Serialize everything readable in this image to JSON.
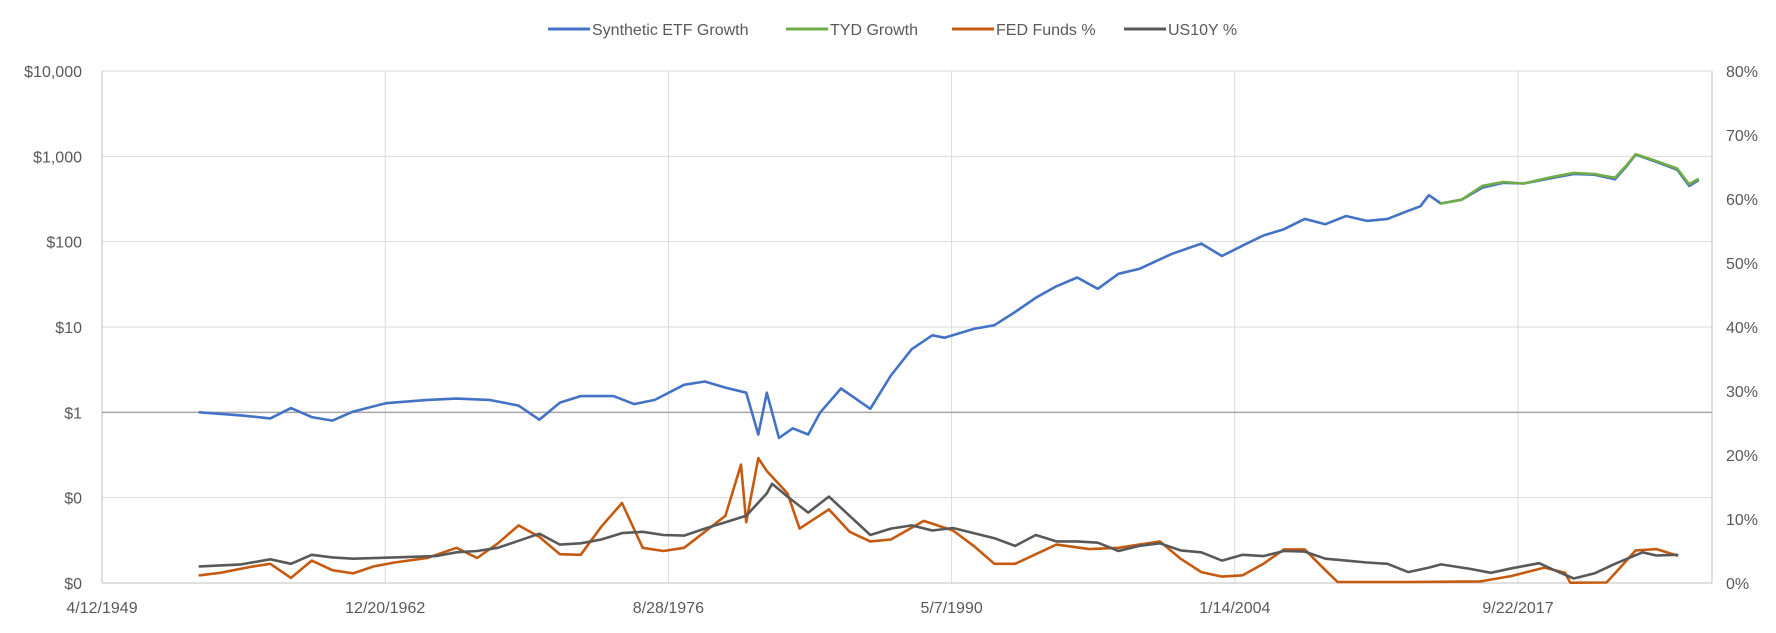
{
  "chart_data": {
    "type": "line",
    "legend": {
      "placement": "top-center",
      "entries": [
        {
          "name": "Synthetic ETF Growth",
          "color": "#4472C4"
        },
        {
          "name": "TYD Growth",
          "color": "#70AD47"
        },
        {
          "name": "FED Funds %",
          "color": "#C55A11"
        },
        {
          "name": "US10Y %",
          "color": "#595959"
        }
      ]
    },
    "x_axis": {
      "type": "date",
      "range": [
        "1949-04-12",
        "2027-02-07"
      ],
      "ticks": [
        "1949-04-12",
        "1962-12-20",
        "1976-08-28",
        "1990-05-07",
        "2004-01-14",
        "2017-09-22"
      ],
      "tick_labels": [
        "4/12/1949",
        "12/20/1962",
        "8/28/1976",
        "5/7/1990",
        "1/14/2004",
        "9/22/2017"
      ],
      "gridlines": true
    },
    "y_left": {
      "scale": "log",
      "range": [
        0.01,
        10000
      ],
      "tick_values": [
        0.01,
        0.1,
        1,
        10,
        100,
        1000,
        10000
      ],
      "tick_labels": [
        "$0",
        "$0",
        "$1",
        "$10",
        "$100",
        "$1,000",
        "$10,000"
      ],
      "gridlines": true
    },
    "y_right": {
      "scale": "linear",
      "range": [
        0,
        80
      ],
      "tick_values": [
        0,
        10,
        20,
        30,
        40,
        50,
        60,
        70,
        80
      ],
      "tick_labels": [
        "0%",
        "10%",
        "20%",
        "30%",
        "40%",
        "50%",
        "60%",
        "70%",
        "80%"
      ]
    },
    "series": [
      {
        "name": "Synthetic ETF Growth",
        "axis": "left",
        "color": "#4472C4",
        "points": [
          [
            "1954-01-01",
            1.0
          ],
          [
            "1956-01-01",
            0.92
          ],
          [
            "1957-06-01",
            0.85
          ],
          [
            "1958-06-01",
            1.12
          ],
          [
            "1959-06-01",
            0.88
          ],
          [
            "1960-06-01",
            0.8
          ],
          [
            "1961-06-01",
            1.02
          ],
          [
            "1963-01-01",
            1.28
          ],
          [
            "1965-01-01",
            1.4
          ],
          [
            "1966-06-01",
            1.45
          ],
          [
            "1968-01-01",
            1.4
          ],
          [
            "1969-06-01",
            1.2
          ],
          [
            "1970-06-01",
            0.82
          ],
          [
            "1971-06-01",
            1.3
          ],
          [
            "1972-06-01",
            1.55
          ],
          [
            "1974-01-01",
            1.55
          ],
          [
            "1975-01-01",
            1.25
          ],
          [
            "1976-01-01",
            1.4
          ],
          [
            "1977-06-01",
            2.1
          ],
          [
            "1978-06-01",
            2.3
          ],
          [
            "1979-06-01",
            1.95
          ],
          [
            "1980-06-01",
            1.7
          ],
          [
            "1981-01-01",
            0.55
          ],
          [
            "1981-06-01",
            1.7
          ],
          [
            "1982-01-01",
            0.5
          ],
          [
            "1982-09-01",
            0.65
          ],
          [
            "1983-06-01",
            0.55
          ],
          [
            "1984-01-01",
            1.0
          ],
          [
            "1985-01-01",
            1.9
          ],
          [
            "1986-06-01",
            1.1
          ],
          [
            "1987-06-01",
            2.7
          ],
          [
            "1988-06-01",
            5.5
          ],
          [
            "1989-06-01",
            8.0
          ],
          [
            "1990-01-01",
            7.5
          ],
          [
            "1991-06-01",
            9.5
          ],
          [
            "1992-06-01",
            10.5
          ],
          [
            "1993-06-01",
            15.0
          ],
          [
            "1994-06-01",
            22.0
          ],
          [
            "1995-06-01",
            30.0
          ],
          [
            "1996-06-01",
            38.0
          ],
          [
            "1997-06-01",
            28.0
          ],
          [
            "1998-06-01",
            42.0
          ],
          [
            "1999-06-01",
            48.0
          ],
          [
            "2001-01-01",
            72.0
          ],
          [
            "2002-06-01",
            95.0
          ],
          [
            "2003-06-01",
            68.0
          ],
          [
            "2004-06-01",
            90.0
          ],
          [
            "2005-06-01",
            118.0
          ],
          [
            "2006-06-01",
            140.0
          ],
          [
            "2007-06-01",
            185.0
          ],
          [
            "2008-06-01",
            160.0
          ],
          [
            "2009-06-01",
            200.0
          ],
          [
            "2010-06-01",
            175.0
          ],
          [
            "2011-06-01",
            185.0
          ],
          [
            "2012-06-01",
            230.0
          ],
          [
            "2013-01-01",
            260.0
          ],
          [
            "2013-06-01",
            350.0
          ],
          [
            "2014-01-01",
            280.0
          ],
          [
            "2015-01-01",
            310.0
          ],
          [
            "2016-01-01",
            430.0
          ],
          [
            "2017-01-01",
            490.0
          ],
          [
            "2018-01-01",
            480.0
          ],
          [
            "2019-06-01",
            560.0
          ],
          [
            "2020-06-01",
            620.0
          ],
          [
            "2021-06-01",
            610.0
          ],
          [
            "2022-06-01",
            540.0
          ],
          [
            "2023-01-01",
            780.0
          ],
          [
            "2023-06-01",
            1050.0
          ],
          [
            "2024-06-01",
            860.0
          ],
          [
            "2025-06-01",
            700.0
          ],
          [
            "2026-01-01",
            450.0
          ],
          [
            "2026-06-01",
            520.0
          ]
        ]
      },
      {
        "name": "TYD Growth",
        "axis": "left",
        "color": "#70AD47",
        "points": [
          [
            "2014-01-01",
            280.0
          ],
          [
            "2015-01-01",
            310.0
          ],
          [
            "2016-01-01",
            450.0
          ],
          [
            "2017-01-01",
            500.0
          ],
          [
            "2018-01-01",
            480.0
          ],
          [
            "2019-06-01",
            575.0
          ],
          [
            "2020-06-01",
            640.0
          ],
          [
            "2021-06-01",
            620.0
          ],
          [
            "2022-06-01",
            560.0
          ],
          [
            "2023-01-01",
            800.0
          ],
          [
            "2023-06-01",
            1060.0
          ],
          [
            "2024-06-01",
            880.0
          ],
          [
            "2025-06-01",
            720.0
          ],
          [
            "2026-01-01",
            470.0
          ],
          [
            "2026-06-01",
            540.0
          ]
        ]
      },
      {
        "name": "FED Funds %",
        "axis": "right",
        "color": "#C55A11",
        "points": [
          [
            "1954-01-01",
            1.2
          ],
          [
            "1955-01-01",
            1.6
          ],
          [
            "1956-06-01",
            2.5
          ],
          [
            "1957-06-01",
            3.0
          ],
          [
            "1958-06-01",
            0.8
          ],
          [
            "1959-06-01",
            3.5
          ],
          [
            "1960-06-01",
            2.0
          ],
          [
            "1961-06-01",
            1.5
          ],
          [
            "1962-06-01",
            2.6
          ],
          [
            "1963-06-01",
            3.2
          ],
          [
            "1965-01-01",
            3.9
          ],
          [
            "1966-06-01",
            5.5
          ],
          [
            "1967-06-01",
            3.9
          ],
          [
            "1968-06-01",
            6.2
          ],
          [
            "1969-06-01",
            9.0
          ],
          [
            "1970-06-01",
            7.2
          ],
          [
            "1971-06-01",
            4.5
          ],
          [
            "1972-06-01",
            4.4
          ],
          [
            "1973-06-01",
            8.8
          ],
          [
            "1974-06-01",
            12.5
          ],
          [
            "1975-06-01",
            5.5
          ],
          [
            "1976-06-01",
            5.0
          ],
          [
            "1977-06-01",
            5.5
          ],
          [
            "1978-06-01",
            8.0
          ],
          [
            "1979-06-01",
            10.5
          ],
          [
            "1980-03-01",
            18.5
          ],
          [
            "1980-06-01",
            9.5
          ],
          [
            "1981-01-01",
            19.5
          ],
          [
            "1981-06-01",
            17.5
          ],
          [
            "1982-06-01",
            14.0
          ],
          [
            "1983-01-01",
            8.5
          ],
          [
            "1984-06-01",
            11.5
          ],
          [
            "1985-06-01",
            8.0
          ],
          [
            "1986-06-01",
            6.5
          ],
          [
            "1987-06-01",
            6.8
          ],
          [
            "1989-01-01",
            9.7
          ],
          [
            "1990-06-01",
            8.2
          ],
          [
            "1991-06-01",
            5.8
          ],
          [
            "1992-06-01",
            3.0
          ],
          [
            "1993-06-01",
            3.0
          ],
          [
            "1994-06-01",
            4.5
          ],
          [
            "1995-06-01",
            6.0
          ],
          [
            "1997-01-01",
            5.3
          ],
          [
            "1998-06-01",
            5.5
          ],
          [
            "2000-06-01",
            6.5
          ],
          [
            "2001-06-01",
            3.8
          ],
          [
            "2002-06-01",
            1.7
          ],
          [
            "2003-06-01",
            1.0
          ],
          [
            "2004-06-01",
            1.2
          ],
          [
            "2005-06-01",
            3.0
          ],
          [
            "2006-06-01",
            5.25
          ],
          [
            "2007-06-01",
            5.25
          ],
          [
            "2008-06-01",
            2.0
          ],
          [
            "2009-01-01",
            0.15
          ],
          [
            "2012-06-01",
            0.15
          ],
          [
            "2015-12-01",
            0.25
          ],
          [
            "2017-06-01",
            1.1
          ],
          [
            "2019-01-01",
            2.4
          ],
          [
            "2020-01-01",
            1.6
          ],
          [
            "2020-04-01",
            0.05
          ],
          [
            "2022-01-01",
            0.08
          ],
          [
            "2022-06-01",
            1.5
          ],
          [
            "2023-06-01",
            5.1
          ],
          [
            "2024-06-01",
            5.3
          ],
          [
            "2025-06-01",
            4.3
          ]
        ]
      },
      {
        "name": "US10Y %",
        "axis": "right",
        "color": "#595959",
        "points": [
          [
            "1954-01-01",
            2.6
          ],
          [
            "1956-01-01",
            2.9
          ],
          [
            "1957-06-01",
            3.7
          ],
          [
            "1958-06-01",
            3.0
          ],
          [
            "1959-06-01",
            4.4
          ],
          [
            "1960-06-01",
            4.0
          ],
          [
            "1961-06-01",
            3.8
          ],
          [
            "1963-06-01",
            4.0
          ],
          [
            "1965-06-01",
            4.2
          ],
          [
            "1966-06-01",
            4.8
          ],
          [
            "1967-06-01",
            5.0
          ],
          [
            "1968-06-01",
            5.5
          ],
          [
            "1969-06-01",
            6.6
          ],
          [
            "1970-06-01",
            7.7
          ],
          [
            "1971-06-01",
            6.0
          ],
          [
            "1972-06-01",
            6.2
          ],
          [
            "1973-06-01",
            6.8
          ],
          [
            "1974-06-01",
            7.8
          ],
          [
            "1975-06-01",
            8.0
          ],
          [
            "1976-06-01",
            7.5
          ],
          [
            "1977-06-01",
            7.4
          ],
          [
            "1978-06-01",
            8.5
          ],
          [
            "1979-06-01",
            9.5
          ],
          [
            "1980-06-01",
            10.5
          ],
          [
            "1981-06-01",
            14.0
          ],
          [
            "1981-09-01",
            15.5
          ],
          [
            "1982-06-01",
            13.5
          ],
          [
            "1983-06-01",
            11.0
          ],
          [
            "1984-06-01",
            13.5
          ],
          [
            "1985-06-01",
            10.5
          ],
          [
            "1986-06-01",
            7.5
          ],
          [
            "1987-06-01",
            8.5
          ],
          [
            "1988-06-01",
            9.0
          ],
          [
            "1989-06-01",
            8.2
          ],
          [
            "1990-06-01",
            8.6
          ],
          [
            "1991-06-01",
            7.8
          ],
          [
            "1992-06-01",
            7.0
          ],
          [
            "1993-06-01",
            5.8
          ],
          [
            "1994-06-01",
            7.5
          ],
          [
            "1995-06-01",
            6.5
          ],
          [
            "1996-06-01",
            6.5
          ],
          [
            "1997-06-01",
            6.3
          ],
          [
            "1998-06-01",
            5.0
          ],
          [
            "1999-06-01",
            5.8
          ],
          [
            "2000-06-01",
            6.2
          ],
          [
            "2001-06-01",
            5.1
          ],
          [
            "2002-06-01",
            4.8
          ],
          [
            "2003-06-01",
            3.5
          ],
          [
            "2004-06-01",
            4.4
          ],
          [
            "2005-06-01",
            4.2
          ],
          [
            "2006-06-01",
            5.0
          ],
          [
            "2007-06-01",
            4.9
          ],
          [
            "2008-06-01",
            3.8
          ],
          [
            "2009-06-01",
            3.5
          ],
          [
            "2010-06-01",
            3.2
          ],
          [
            "2011-06-01",
            3.0
          ],
          [
            "2012-06-01",
            1.7
          ],
          [
            "2013-06-01",
            2.4
          ],
          [
            "2014-01-01",
            2.9
          ],
          [
            "2015-06-01",
            2.2
          ],
          [
            "2016-06-01",
            1.6
          ],
          [
            "2017-06-01",
            2.3
          ],
          [
            "2018-10-01",
            3.1
          ],
          [
            "2019-06-01",
            2.1
          ],
          [
            "2020-06-01",
            0.7
          ],
          [
            "2021-06-01",
            1.5
          ],
          [
            "2022-06-01",
            3.0
          ],
          [
            "2023-10-01",
            4.8
          ],
          [
            "2024-06-01",
            4.3
          ],
          [
            "2025-06-01",
            4.4
          ]
        ]
      }
    ]
  }
}
